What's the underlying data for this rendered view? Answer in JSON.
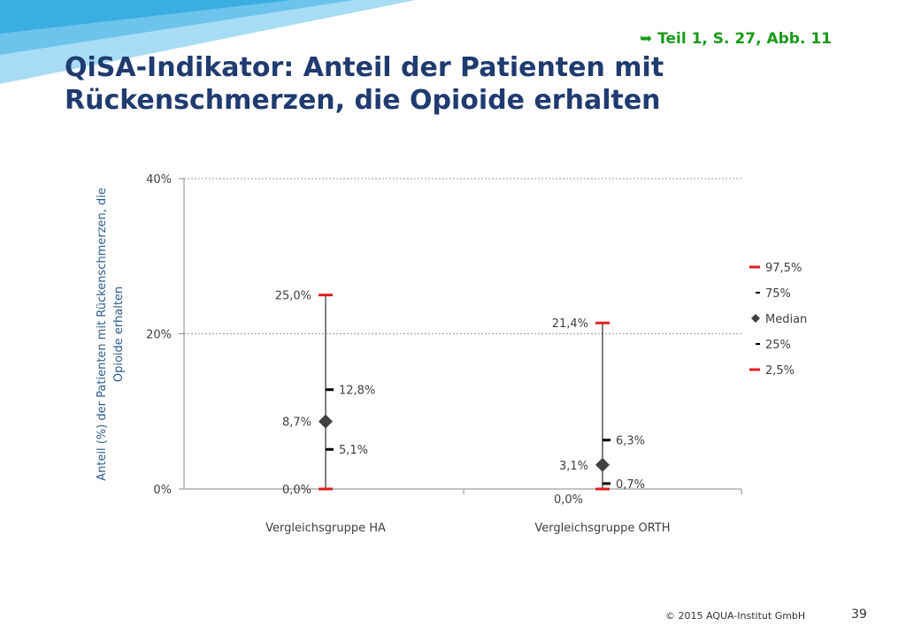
{
  "slide": {
    "reference": "➥ Teil  1, S. 27, Abb. 11",
    "title_line1": "QiSA-Indikator: Anteil der Patienten mit",
    "title_line2": "Rückenschmerzen, die Opioide erhalten",
    "copyright": "© 2015 AQUA-Institut GmbH",
    "page_number": "39"
  },
  "colors": {
    "title": "#1f3b70",
    "reference": "#1a9a1a",
    "percentile_outer": "#e02020",
    "percentile_inner": "#000000",
    "median": "#404040",
    "axis_label": "#2e5c8a",
    "banner_dark": "#3aaee0",
    "banner_light": "#a8dcf5"
  },
  "chart_data": {
    "type": "scatter",
    "ylabel_line1": "Anteil (%) der Patienten mit Rückenschmerzen, die",
    "ylabel_line2": "Opioide erhalten",
    "xlabel": "",
    "ylim": [
      0,
      40
    ],
    "yticks": [
      {
        "value": 0,
        "label": "0%"
      },
      {
        "value": 20,
        "label": "20%"
      },
      {
        "value": 40,
        "label": "40%"
      }
    ],
    "grid": true,
    "legend_position": "right",
    "categories": [
      "Vergleichsgruppe HA",
      "Vergleichsgruppe ORTH"
    ],
    "series": [
      {
        "name": "97,5%",
        "values": [
          25.0,
          21.4
        ],
        "labels": [
          "25,0%",
          "21,4%"
        ],
        "marker": "red-dash"
      },
      {
        "name": "75%",
        "values": [
          12.8,
          6.3
        ],
        "labels": [
          "12,8%",
          "6,3%"
        ],
        "marker": "black-dash"
      },
      {
        "name": "Median",
        "values": [
          8.7,
          3.1
        ],
        "labels": [
          "8,7%",
          "3,1%"
        ],
        "marker": "diamond"
      },
      {
        "name": "25%",
        "values": [
          5.1,
          0.7
        ],
        "labels": [
          "5,1%",
          "0,7%"
        ],
        "marker": "black-dash"
      },
      {
        "name": "2,5%",
        "values": [
          0.0,
          0.0
        ],
        "labels": [
          "0,0%",
          "0,0%"
        ],
        "marker": "red-dash"
      }
    ]
  }
}
